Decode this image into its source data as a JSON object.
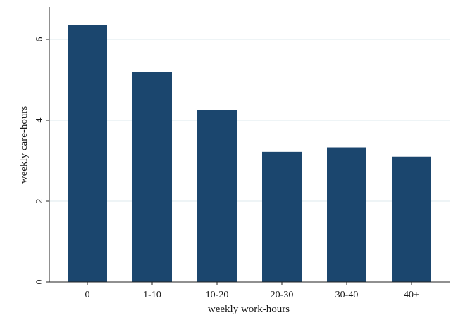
{
  "chart_data": {
    "type": "bar",
    "xlabel": "weekly work-hours",
    "ylabel": "weekly care-hours",
    "categories": [
      "0",
      "1-10",
      "10-20",
      "20-30",
      "30-40",
      "40+"
    ],
    "values": [
      6.35,
      5.2,
      4.25,
      3.22,
      3.33,
      3.1
    ],
    "ylim": [
      0,
      6.8
    ],
    "yticks": [
      0,
      2,
      4,
      6
    ],
    "grid": true,
    "colors": {
      "bar": "#1b466e",
      "grid": "#dde8ee",
      "axis": "#222222"
    }
  }
}
